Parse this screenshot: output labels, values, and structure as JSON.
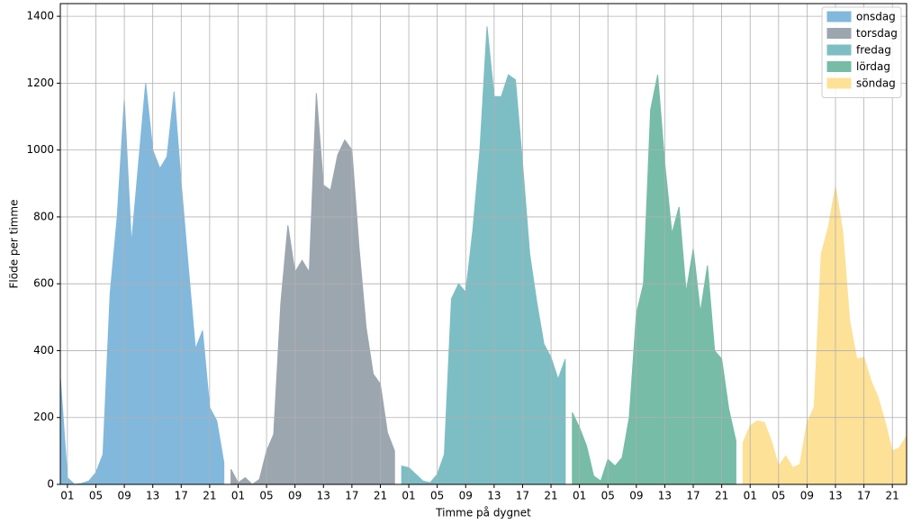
{
  "chart_data": {
    "type": "area",
    "xlabel": "Timme på dygnet",
    "ylabel": "Flöde per timme",
    "xlim": [
      0,
      119
    ],
    "ylim": [
      0,
      1438
    ],
    "yticks": [
      0,
      200,
      400,
      600,
      800,
      1000,
      1200,
      1400
    ],
    "xticks": [
      {
        "value": 1,
        "label": "01"
      },
      {
        "value": 5,
        "label": "05"
      },
      {
        "value": 9,
        "label": "09"
      },
      {
        "value": 13,
        "label": "13"
      },
      {
        "value": 17,
        "label": "17"
      },
      {
        "value": 21,
        "label": "21"
      },
      {
        "value": 25,
        "label": "01"
      },
      {
        "value": 29,
        "label": "05"
      },
      {
        "value": 33,
        "label": "09"
      },
      {
        "value": 37,
        "label": "13"
      },
      {
        "value": 41,
        "label": "17"
      },
      {
        "value": 45,
        "label": "21"
      },
      {
        "value": 49,
        "label": "01"
      },
      {
        "value": 53,
        "label": "05"
      },
      {
        "value": 57,
        "label": "09"
      },
      {
        "value": 61,
        "label": "13"
      },
      {
        "value": 65,
        "label": "17"
      },
      {
        "value": 69,
        "label": "21"
      },
      {
        "value": 73,
        "label": "01"
      },
      {
        "value": 77,
        "label": "05"
      },
      {
        "value": 81,
        "label": "09"
      },
      {
        "value": 85,
        "label": "13"
      },
      {
        "value": 89,
        "label": "17"
      },
      {
        "value": 93,
        "label": "21"
      },
      {
        "value": 97,
        "label": "01"
      },
      {
        "value": 101,
        "label": "05"
      },
      {
        "value": 105,
        "label": "09"
      },
      {
        "value": 109,
        "label": "13"
      },
      {
        "value": 113,
        "label": "17"
      },
      {
        "value": 117,
        "label": "21"
      }
    ],
    "grid": true,
    "legend": "upper right",
    "series": [
      {
        "name": "onsdag",
        "color": "#82b8dc",
        "x": [
          0,
          1,
          2,
          3,
          4,
          5,
          6,
          7,
          8,
          9,
          10,
          11,
          12,
          13,
          14,
          15,
          16,
          17,
          18,
          19,
          20,
          21,
          22,
          23
        ],
        "values": [
          320,
          20,
          0,
          3,
          10,
          35,
          90,
          570,
          800,
          1150,
          720,
          960,
          1200,
          1000,
          945,
          980,
          1175,
          900,
          650,
          405,
          460,
          230,
          190,
          65
        ]
      },
      {
        "name": "torsdag",
        "color": "#9ca6af",
        "x": [
          24,
          25,
          26,
          27,
          28,
          29,
          30,
          31,
          32,
          33,
          34,
          35,
          36,
          37,
          38,
          39,
          40,
          41,
          42,
          43,
          44,
          45,
          46,
          47
        ],
        "values": [
          45,
          5,
          20,
          0,
          15,
          100,
          150,
          540,
          775,
          635,
          670,
          635,
          1170,
          895,
          880,
          985,
          1030,
          1000,
          710,
          470,
          330,
          300,
          155,
          100
        ]
      },
      {
        "name": "fredag",
        "color": "#7dbec4",
        "x": [
          48,
          49,
          50,
          51,
          52,
          53,
          54,
          55,
          56,
          57,
          58,
          59,
          60,
          61,
          62,
          63,
          64,
          65,
          66,
          67,
          68,
          69,
          70,
          71
        ],
        "values": [
          55,
          50,
          30,
          10,
          5,
          30,
          90,
          555,
          600,
          575,
          760,
          1000,
          1370,
          1160,
          1160,
          1225,
          1210,
          960,
          690,
          545,
          420,
          380,
          315,
          375
        ]
      },
      {
        "name": "lördag",
        "color": "#76bca7",
        "x": [
          72,
          73,
          74,
          75,
          76,
          77,
          78,
          79,
          80,
          81,
          82,
          83,
          84,
          85,
          86,
          87,
          88,
          89,
          90,
          91,
          92,
          93,
          94,
          95
        ],
        "values": [
          215,
          170,
          115,
          25,
          10,
          75,
          55,
          80,
          200,
          510,
          600,
          1120,
          1225,
          960,
          750,
          830,
          575,
          705,
          515,
          655,
          400,
          375,
          225,
          130
        ]
      },
      {
        "name": "söndag",
        "color": "#fde197",
        "x": [
          96,
          97,
          98,
          99,
          100,
          101,
          102,
          103,
          104,
          105,
          106,
          107,
          108,
          109,
          110,
          111,
          112,
          113,
          114,
          115,
          116,
          117,
          118,
          119
        ],
        "values": [
          125,
          175,
          190,
          185,
          130,
          55,
          85,
          50,
          60,
          185,
          230,
          690,
          770,
          890,
          760,
          490,
          375,
          380,
          310,
          260,
          185,
          100,
          110,
          145
        ]
      }
    ]
  }
}
